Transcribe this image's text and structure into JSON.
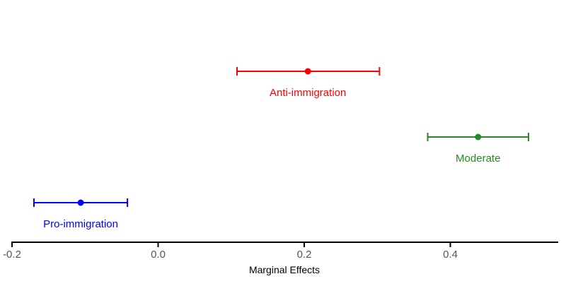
{
  "chart_data": {
    "type": "scatter",
    "title": "",
    "xlabel": "Marginal Effects",
    "ylabel": "",
    "xlim": [
      -0.2,
      0.54
    ],
    "xticks": [
      -0.2,
      0.0,
      0.2,
      0.4
    ],
    "xtick_labels": [
      "-0.2",
      "0.0",
      "0.2",
      "0.4"
    ],
    "grid": false,
    "error_bars": true,
    "series": [
      {
        "name": "Anti-immigration",
        "estimate": 0.205,
        "lower": 0.108,
        "upper": 0.303,
        "color": "#ff0000"
      },
      {
        "name": "Moderate",
        "estimate": 0.438,
        "lower": 0.369,
        "upper": 0.507,
        "color": "#228b22"
      },
      {
        "name": "Pro-immigration",
        "estimate": -0.106,
        "lower": -0.17,
        "upper": -0.042,
        "color": "#0000ff"
      }
    ]
  }
}
